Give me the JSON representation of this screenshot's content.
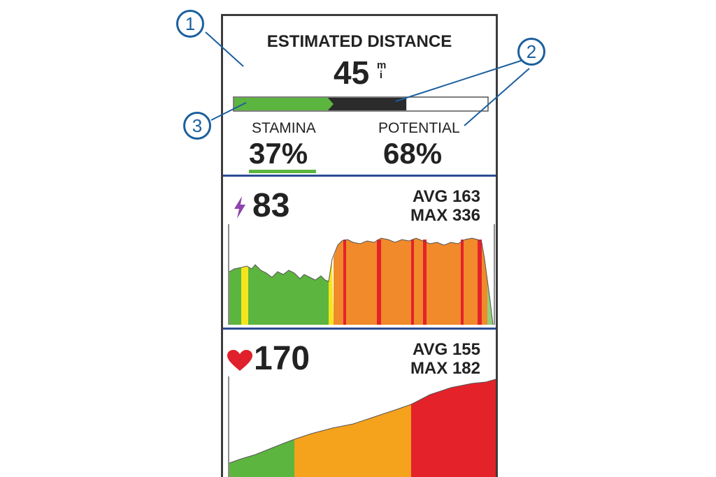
{
  "estimated_distance": {
    "title": "ESTIMATED DISTANCE",
    "value": "45",
    "unit_top": "m",
    "unit_bottom": "i"
  },
  "stamina_bar": {
    "stamina_fraction": 0.37,
    "potential_fraction": 0.68,
    "colors": {
      "stamina": "#5cb53e",
      "potential": "#2b2b2b",
      "empty": "#ffffff"
    }
  },
  "stamina": {
    "label": "STAMINA",
    "value": "37%"
  },
  "potential": {
    "label": "POTENTIAL",
    "value": "68%"
  },
  "power": {
    "icon": "lightning-bolt-icon",
    "value": "83",
    "avg_label": "AVG",
    "avg_value": "163",
    "max_label": "MAX",
    "max_value": "336",
    "icon_color": "#8e44ad"
  },
  "heart_rate": {
    "icon": "heart-icon",
    "value": "170",
    "avg_label": "AVG",
    "avg_value": "155",
    "max_label": "MAX",
    "max_value": "182",
    "icon_color": "#e0202a"
  },
  "callouts": [
    "1",
    "2",
    "3"
  ],
  "colors": {
    "zone_green": "#5cb53e",
    "zone_yellow": "#f3e61e",
    "zone_orange": "#f08a2a",
    "zone_amber": "#f5a21d",
    "zone_red": "#e4222a",
    "divider": "#2c4c93",
    "callout": "#1b5f9e"
  }
}
